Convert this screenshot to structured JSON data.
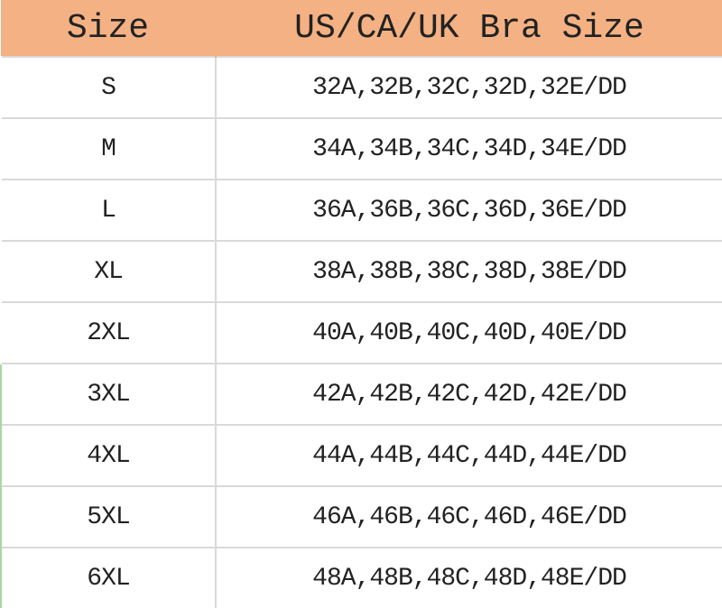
{
  "header": {
    "size": "Size",
    "bra_size": "US/CA/UK Bra Size"
  },
  "header_color": "#f4b183",
  "rows": [
    {
      "size": "S",
      "bra": "32A,32B,32C,32D,32E/DD"
    },
    {
      "size": "M",
      "bra": "34A,34B,34C,34D,34E/DD"
    },
    {
      "size": "L",
      "bra": "36A,36B,36C,36D,36E/DD"
    },
    {
      "size": "XL",
      "bra": "38A,38B,38C,38D,38E/DD"
    },
    {
      "size": "2XL",
      "bra": "40A,40B,40C,40D,40E/DD"
    },
    {
      "size": "3XL",
      "bra": "42A,42B,42C,42D,42E/DD"
    },
    {
      "size": "4XL",
      "bra": "44A,44B,44C,44D,44E/DD"
    },
    {
      "size": "5XL",
      "bra": "46A,46B,46C,46D,46E/DD"
    },
    {
      "size": "6XL",
      "bra": "48A,48B,48C,48D,48E/DD"
    }
  ]
}
